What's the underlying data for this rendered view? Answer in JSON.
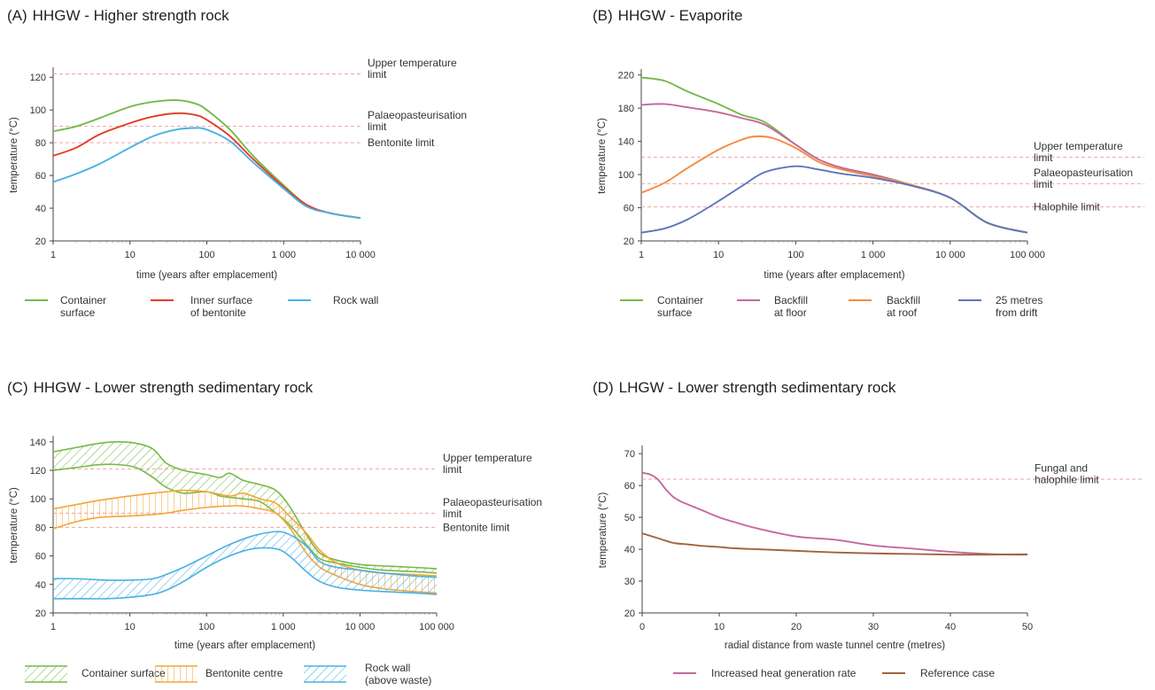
{
  "chart_data": [
    {
      "id": "A",
      "type": "line",
      "title_letter": "(A)",
      "title": "HHGW - Higher strength rock",
      "xlabel": "time (years after emplacement)",
      "ylabel": "temperature (°C)",
      "xscale": "log",
      "xlim": [
        1,
        10000
      ],
      "ylim": [
        20,
        125
      ],
      "xticks": [
        1,
        10,
        100,
        1000,
        10000
      ],
      "xtick_labels": [
        "1",
        "10",
        "100",
        "1 000",
        "10 000"
      ],
      "yticks": [
        20,
        40,
        60,
        80,
        100,
        120
      ],
      "ref_lines": [
        {
          "value": 122,
          "label": [
            "Upper temperature",
            "limit"
          ]
        },
        {
          "value": 90,
          "label": [
            "Palaeopasteurisation",
            "limit"
          ]
        },
        {
          "value": 80,
          "label": [
            "Bentonite limit"
          ]
        }
      ],
      "series": [
        {
          "name": [
            "Container",
            "surface"
          ],
          "color": "#77b94a",
          "x": [
            1,
            2,
            4,
            10,
            20,
            40,
            70,
            100,
            200,
            400,
            1000,
            2000,
            4000,
            10000
          ],
          "values": [
            87,
            90,
            95,
            102,
            105,
            106,
            104,
            100,
            88,
            72,
            54,
            42,
            37,
            34
          ]
        },
        {
          "name": [
            "Inner surface",
            "of bentonite"
          ],
          "color": "#e53a26",
          "x": [
            1,
            2,
            4,
            10,
            20,
            40,
            70,
            100,
            200,
            400,
            1000,
            2000,
            4000,
            10000
          ],
          "values": [
            72,
            77,
            85,
            92,
            96,
            98,
            97,
            94,
            84,
            70,
            53,
            42,
            37,
            34
          ]
        },
        {
          "name": [
            "Rock wall"
          ],
          "color": "#48b1e3",
          "x": [
            1,
            2,
            4,
            10,
            20,
            40,
            70,
            100,
            200,
            400,
            1000,
            2000,
            4000,
            10000
          ],
          "values": [
            56,
            61,
            67,
            77,
            84,
            88,
            89,
            88,
            81,
            68,
            52,
            41,
            37,
            34
          ]
        }
      ]
    },
    {
      "id": "B",
      "type": "line",
      "title_letter": "(B)",
      "title": "HHGW - Evaporite",
      "xlabel": "time (years after emplacement)",
      "ylabel": "temperature (°C)",
      "xscale": "log",
      "xlim": [
        1,
        100000
      ],
      "ylim": [
        20,
        225
      ],
      "xticks": [
        1,
        10,
        100,
        1000,
        10000,
        100000
      ],
      "xtick_labels": [
        "1",
        "10",
        "100",
        "1 000",
        "10 000",
        "100 000"
      ],
      "yticks": [
        20,
        60,
        100,
        140,
        180,
        220
      ],
      "ref_lines": [
        {
          "value": 121,
          "label": [
            "Upper temperature",
            "limit"
          ]
        },
        {
          "value": 89,
          "label": [
            "Palaeopasteurisation",
            "limit"
          ]
        },
        {
          "value": 61,
          "label": [
            "Halophile limit"
          ]
        }
      ],
      "series": [
        {
          "name": [
            "Container",
            "surface"
          ],
          "color": "#77b94a",
          "x": [
            1,
            2,
            4,
            10,
            20,
            40,
            100,
            200,
            400,
            1000,
            3000,
            10000,
            30000,
            100000
          ],
          "values": [
            217,
            213,
            200,
            185,
            172,
            163,
            136,
            118,
            108,
            100,
            88,
            72,
            42,
            30
          ]
        },
        {
          "name": [
            "Backfill",
            "at floor"
          ],
          "color": "#c5699b",
          "x": [
            1,
            2,
            4,
            10,
            20,
            40,
            100,
            200,
            400,
            1000,
            3000,
            10000,
            30000,
            100000
          ],
          "values": [
            184,
            185,
            181,
            175,
            168,
            160,
            136,
            118,
            108,
            100,
            88,
            72,
            42,
            30
          ]
        },
        {
          "name": [
            "Backfill",
            "at roof"
          ],
          "color": "#f58a45",
          "x": [
            1,
            2,
            4,
            10,
            20,
            30,
            50,
            100,
            200,
            400,
            1000,
            3000,
            10000,
            30000,
            100000
          ],
          "values": [
            78,
            90,
            108,
            130,
            142,
            146,
            144,
            132,
            115,
            106,
            98,
            88,
            72,
            42,
            30
          ]
        },
        {
          "name": [
            "25 metres",
            "from drift"
          ],
          "color": "#5a77bb",
          "x": [
            1,
            2,
            4,
            10,
            20,
            40,
            100,
            200,
            400,
            1000,
            3000,
            10000,
            30000,
            100000
          ],
          "values": [
            30,
            35,
            46,
            68,
            86,
            103,
            110,
            106,
            101,
            96,
            87,
            72,
            42,
            30
          ]
        }
      ]
    },
    {
      "id": "C",
      "type": "area",
      "title_letter": "(C)",
      "title": "HHGW - Lower strength sedimentary rock",
      "xlabel": "time (years after emplacement)",
      "ylabel": "temperature (°C)",
      "xscale": "log",
      "xlim": [
        1,
        100000
      ],
      "ylim": [
        20,
        143
      ],
      "xticks": [
        1,
        10,
        100,
        1000,
        10000,
        100000
      ],
      "xtick_labels": [
        "1",
        "10",
        "100",
        "1 000",
        "10 000",
        "100 000"
      ],
      "yticks": [
        20,
        40,
        60,
        80,
        100,
        120,
        140
      ],
      "ref_lines": [
        {
          "value": 121,
          "label": [
            "Upper temperature",
            "limit"
          ]
        },
        {
          "value": 90,
          "label": [
            "Palaeopasteurisation",
            "limit"
          ]
        },
        {
          "value": 80,
          "label": [
            "Bentonite limit"
          ]
        }
      ],
      "series": [
        {
          "name": [
            "Container surface"
          ],
          "color": "#77b94a",
          "hatch": "diagonal",
          "x": [
            1,
            2,
            4,
            7,
            12,
            20,
            30,
            50,
            100,
            150,
            200,
            300,
            500,
            800,
            1200,
            2000,
            3000,
            5000,
            10000,
            20000,
            50000,
            100000
          ],
          "upper": [
            133,
            136,
            139,
            140,
            139,
            135,
            125,
            120,
            117,
            115,
            118,
            113,
            110,
            106,
            95,
            75,
            62,
            57,
            54,
            53,
            52,
            51
          ],
          "lower": [
            120,
            122,
            124,
            124,
            122,
            115,
            108,
            104,
            105,
            102,
            101,
            100,
            98,
            90,
            82,
            68,
            58,
            55,
            52,
            50,
            49,
            48
          ]
        },
        {
          "name": [
            "Bentonite centre"
          ],
          "color": "#f4a53a",
          "hatch": "vertical",
          "x": [
            1,
            2,
            4,
            10,
            20,
            30,
            50,
            100,
            200,
            300,
            500,
            800,
            1200,
            2000,
            3000,
            5000,
            10000,
            20000,
            50000,
            100000
          ],
          "upper": [
            93,
            96,
            99,
            102,
            104,
            105,
            106,
            105,
            102,
            104,
            100,
            97,
            88,
            76,
            64,
            55,
            50,
            48,
            47,
            46
          ],
          "lower": [
            79,
            84,
            87,
            88,
            89,
            90,
            92,
            94,
            95,
            95,
            93,
            90,
            80,
            62,
            52,
            46,
            40,
            37,
            35,
            34
          ]
        },
        {
          "name": [
            "Rock wall",
            "(above waste)"
          ],
          "color": "#48b1e3",
          "hatch": "diagonal",
          "x": [
            1,
            2,
            5,
            10,
            20,
            30,
            50,
            100,
            200,
            400,
            800,
            1200,
            2000,
            3000,
            5000,
            10000,
            20000,
            50000,
            100000
          ],
          "upper": [
            44,
            44,
            43,
            43,
            44,
            47,
            52,
            60,
            68,
            74,
            77,
            75,
            67,
            56,
            52,
            50,
            48,
            46,
            45
          ],
          "lower": [
            30,
            30,
            30,
            31,
            33,
            36,
            42,
            52,
            60,
            65,
            65,
            60,
            49,
            42,
            38,
            36,
            35,
            34,
            33
          ]
        }
      ]
    },
    {
      "id": "D",
      "type": "line",
      "title_letter": "(D)",
      "title": "LHGW - Lower strength sedimentary rock",
      "xlabel": "radial distance from waste tunnel centre (metres)",
      "ylabel": "temperature (°C)",
      "xscale": "linear",
      "xlim": [
        0,
        50
      ],
      "ylim": [
        20,
        72
      ],
      "xticks": [
        0,
        10,
        20,
        30,
        40,
        50
      ],
      "xtick_labels": [
        "0",
        "10",
        "20",
        "30",
        "40",
        "50"
      ],
      "yticks": [
        20,
        30,
        40,
        50,
        60,
        70
      ],
      "ref_lines": [
        {
          "value": 62,
          "label": [
            "Fungal and",
            "halophile limit"
          ]
        }
      ],
      "series": [
        {
          "name": [
            "Increased heat generation rate"
          ],
          "color": "#c5699b",
          "x": [
            0,
            1,
            2,
            3,
            4,
            5,
            6,
            8,
            10,
            12,
            15,
            20,
            25,
            30,
            35,
            40,
            45,
            48,
            50
          ],
          "values": [
            64,
            63.5,
            62,
            59,
            56.5,
            55,
            54,
            52,
            50,
            48.5,
            46.5,
            44,
            43,
            41.2,
            40.2,
            39.2,
            38.5,
            38.3,
            38.3
          ]
        },
        {
          "name": [
            "Reference case"
          ],
          "color": "#a0643c",
          "x": [
            0,
            2,
            4,
            6,
            8,
            10,
            12,
            15,
            20,
            25,
            30,
            35,
            40,
            45,
            50
          ],
          "values": [
            45,
            43.5,
            42,
            41.5,
            41,
            40.7,
            40.3,
            40,
            39.5,
            39,
            38.7,
            38.5,
            38.3,
            38.3,
            38.4
          ]
        }
      ]
    }
  ]
}
